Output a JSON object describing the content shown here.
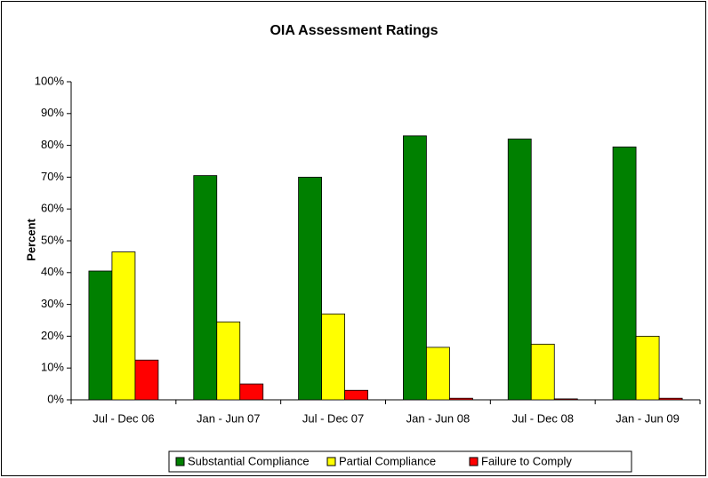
{
  "chart_data": {
    "type": "bar",
    "title": "OIA Assessment Ratings",
    "y_label": "Percent",
    "categories": [
      "Jul - Dec 06",
      "Jan - Jun 07",
      "Jul - Dec 07",
      "Jan - Jun 08",
      "Jul - Dec 08",
      "Jan - Jun 09"
    ],
    "series": [
      {
        "name": "Substantial Compliance",
        "color": "#008000",
        "values": [
          40.5,
          70.5,
          70,
          83,
          82,
          79.5
        ]
      },
      {
        "name": "Partial Compliance",
        "color": "#ffff00",
        "values": [
          46.5,
          24.5,
          27,
          16.5,
          17.5,
          20
        ]
      },
      {
        "name": "Failure to Comply",
        "color": "#ff0000",
        "values": [
          12.5,
          5,
          3,
          0.5,
          0.3,
          0.5
        ]
      }
    ],
    "ylim": [
      0,
      100
    ],
    "yticks": [
      {
        "value": 0,
        "label": "0%"
      },
      {
        "value": 10,
        "label": "10%"
      },
      {
        "value": 20,
        "label": "20%"
      },
      {
        "value": 30,
        "label": "30%"
      },
      {
        "value": 40,
        "label": "40%"
      },
      {
        "value": 50,
        "label": "50%"
      },
      {
        "value": 60,
        "label": "60%"
      },
      {
        "value": 70,
        "label": "70%"
      },
      {
        "value": 80,
        "label": "80%"
      },
      {
        "value": 90,
        "label": "90%"
      },
      {
        "value": 100,
        "label": "100%"
      }
    ],
    "grid": false,
    "legend": "bottom"
  }
}
